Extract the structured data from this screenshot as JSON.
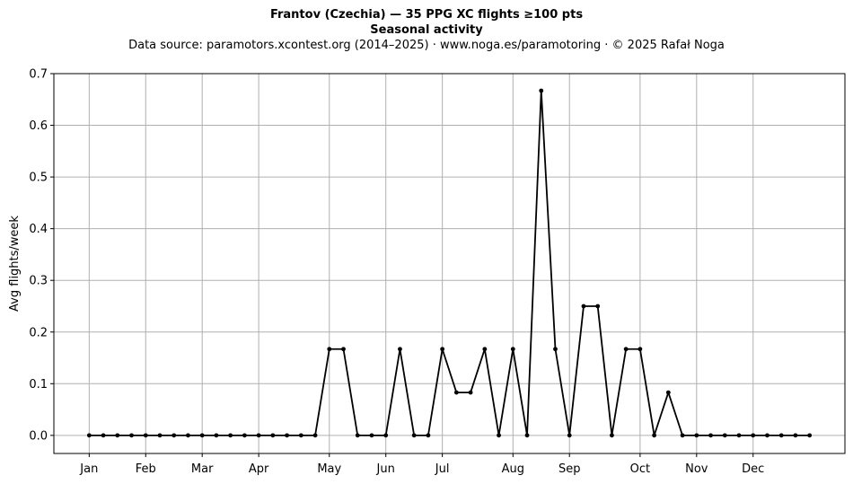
{
  "header": {
    "title": "Frantov (Czechia)  —  35 PPG XC flights ≥100 pts",
    "subtitle": "Seasonal activity",
    "source": "Data source: paramotors.xcontest.org (2014–2025)  ·  www.noga.es/paramotoring  ·  © 2025 Rafał Noga"
  },
  "chart_data": {
    "type": "line",
    "title": "Frantov (Czechia)  —  35 PPG XC flights ≥100 pts",
    "subtitle": "Seasonal activity",
    "xlabel": "",
    "ylabel": "Avg flights/week",
    "ylim": [
      -0.035,
      0.7
    ],
    "yticks": [
      0.0,
      0.1,
      0.2,
      0.3,
      0.4,
      0.5,
      0.6,
      0.7
    ],
    "ytick_labels": [
      "0.0",
      "0.1",
      "0.2",
      "0.3",
      "0.4",
      "0.5",
      "0.6",
      "0.7"
    ],
    "xlim": [
      -1.5,
      54.5
    ],
    "xticks": [
      1,
      5,
      9,
      13,
      18,
      22,
      26,
      31,
      35,
      40,
      44,
      48
    ],
    "xtick_labels": [
      "Jan",
      "Feb",
      "Mar",
      "Apr",
      "May",
      "Jun",
      "Jul",
      "Aug",
      "Sep",
      "Oct",
      "Nov",
      "Dec"
    ],
    "grid": true,
    "line_color": "#000000",
    "x": [
      1,
      2,
      3,
      4,
      5,
      6,
      7,
      8,
      9,
      10,
      11,
      12,
      13,
      14,
      15,
      16,
      17,
      18,
      19,
      20,
      21,
      22,
      23,
      24,
      25,
      26,
      27,
      28,
      29,
      30,
      31,
      32,
      33,
      34,
      35,
      36,
      37,
      38,
      39,
      40,
      41,
      42,
      43,
      44,
      45,
      46,
      47,
      48,
      49,
      50,
      51,
      52
    ],
    "values": [
      0,
      0,
      0,
      0,
      0,
      0,
      0,
      0,
      0,
      0,
      0,
      0,
      0,
      0,
      0,
      0,
      0,
      0.167,
      0.167,
      0,
      0,
      0,
      0.167,
      0,
      0,
      0.167,
      0.083,
      0.083,
      0.167,
      0,
      0.167,
      0,
      0.667,
      0.167,
      0,
      0.25,
      0.25,
      0,
      0.167,
      0.167,
      0,
      0.083,
      0,
      0,
      0,
      0,
      0,
      0,
      0,
      0,
      0,
      0
    ]
  }
}
